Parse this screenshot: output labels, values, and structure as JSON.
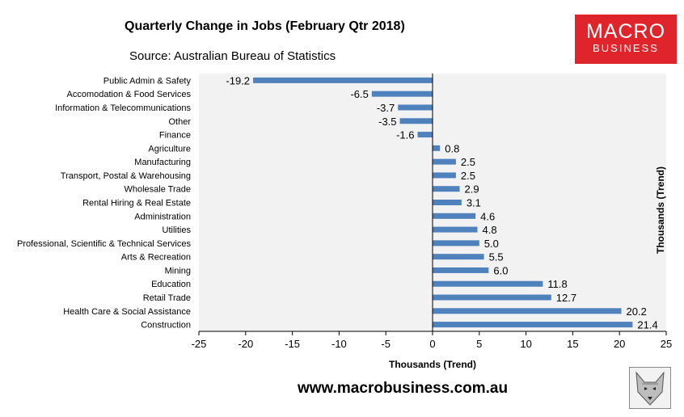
{
  "header": {
    "title": "Quarterly Change in Jobs (February Qtr 2018)",
    "source": "Source: Australian Bureau of Statistics"
  },
  "logo": {
    "line1": "MACRO",
    "line2": "BUSINESS"
  },
  "footer": {
    "website": "www.macrobusiness.com.au"
  },
  "colors": {
    "bar": "#4f81bd",
    "plot_bg": "#f2f2f2",
    "logo_bg": "#e0242b"
  },
  "chart_data": {
    "type": "bar",
    "orientation": "horizontal",
    "title": "Quarterly Change in Jobs (February Qtr 2018)",
    "xlabel": "Thousands (Trend)",
    "ylabel": "Thousands (Trend)",
    "xlim": [
      -25,
      25
    ],
    "xticks": [
      -25,
      -20,
      -15,
      -10,
      -5,
      0,
      5,
      10,
      15,
      20,
      25
    ],
    "categories": [
      "Public Admin & Safety",
      "Accomodation & Food Services",
      "Information & Telecommunications",
      "Other",
      "Finance",
      "Agriculture",
      "Manufacturing",
      "Transport, Postal & Warehousing",
      "Wholesale Trade",
      "Rental Hiring & Real Estate",
      "Administration",
      "Utilities",
      "Professional, Scientific & Technical Services",
      "Arts & Recreation",
      "Mining",
      "Education",
      "Retail Trade",
      "Health Care & Social Assistance",
      "Construction"
    ],
    "values": [
      -19.2,
      -6.5,
      -3.7,
      -3.5,
      -1.6,
      0.8,
      2.5,
      2.5,
      2.9,
      3.1,
      4.6,
      4.8,
      5.0,
      5.5,
      6.0,
      11.8,
      12.7,
      20.2,
      21.4
    ],
    "value_labels": [
      "-19.2",
      "-6.5",
      "-3.7",
      "-3.5",
      "-1.6",
      "0.8",
      "2.5",
      "2.5",
      "2.9",
      "3.1",
      "4.6",
      "4.8",
      "5.0",
      "5.5",
      "6.0",
      "11.8",
      "12.7",
      "20.2",
      "21.4"
    ],
    "grid": false,
    "legend": "none"
  }
}
